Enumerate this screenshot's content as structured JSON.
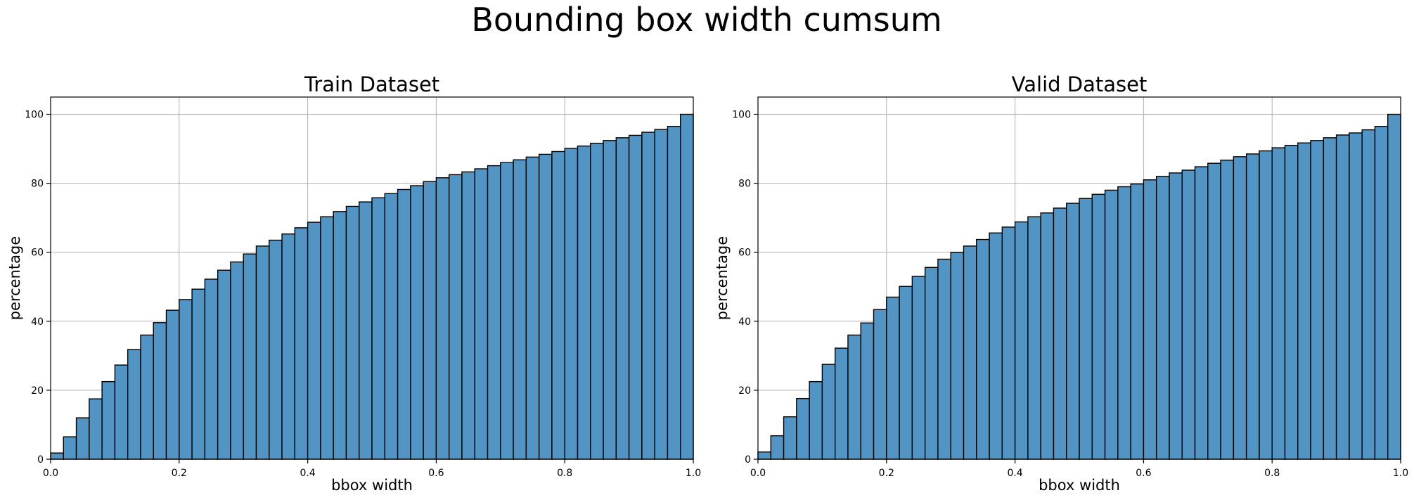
{
  "figure": {
    "suptitle": "Bounding box width cumsum",
    "bar_color": "#5294c4",
    "edge_color": "#000000",
    "grid_color": "#b0b0b0"
  },
  "chart_data": [
    {
      "type": "bar",
      "title": "Train Dataset",
      "xlabel": "bbox width",
      "ylabel": "percentage",
      "xlim": [
        0.0,
        1.0
      ],
      "ylim": [
        0,
        105
      ],
      "xticks": [
        "0.0",
        "0.2",
        "0.4",
        "0.6",
        "0.8",
        "1.0"
      ],
      "yticks": [
        "0",
        "20",
        "40",
        "60",
        "80",
        "100"
      ],
      "grid": true,
      "bin_width": 0.02,
      "x": [
        0.0,
        0.02,
        0.04,
        0.06,
        0.08,
        0.1,
        0.12,
        0.14,
        0.16,
        0.18,
        0.2,
        0.22,
        0.24,
        0.26,
        0.28,
        0.3,
        0.32,
        0.34,
        0.36,
        0.38,
        0.4,
        0.42,
        0.44,
        0.46,
        0.48,
        0.5,
        0.52,
        0.54,
        0.56,
        0.58,
        0.6,
        0.62,
        0.64,
        0.66,
        0.68,
        0.7,
        0.72,
        0.74,
        0.76,
        0.78,
        0.8,
        0.82,
        0.84,
        0.86,
        0.88,
        0.9,
        0.92,
        0.94,
        0.96,
        0.98
      ],
      "values": [
        1.8,
        6.5,
        12.0,
        17.5,
        22.5,
        27.3,
        31.8,
        36.0,
        39.6,
        43.2,
        46.3,
        49.3,
        52.2,
        54.8,
        57.2,
        59.5,
        61.8,
        63.5,
        65.3,
        67.1,
        68.7,
        70.3,
        71.8,
        73.3,
        74.6,
        75.8,
        77.0,
        78.2,
        79.3,
        80.5,
        81.6,
        82.5,
        83.3,
        84.2,
        85.1,
        86.0,
        86.8,
        87.6,
        88.4,
        89.2,
        90.1,
        90.8,
        91.6,
        92.4,
        93.2,
        93.9,
        94.8,
        95.6,
        96.5,
        100.0
      ]
    },
    {
      "type": "bar",
      "title": "Valid Dataset",
      "xlabel": "bbox width",
      "ylabel": "percentage",
      "xlim": [
        0.0,
        1.0
      ],
      "ylim": [
        0,
        105
      ],
      "xticks": [
        "0.0",
        "0.2",
        "0.4",
        "0.6",
        "0.8",
        "1.0"
      ],
      "yticks": [
        "0",
        "20",
        "40",
        "60",
        "80",
        "100"
      ],
      "grid": true,
      "bin_width": 0.02,
      "x": [
        0.0,
        0.02,
        0.04,
        0.06,
        0.08,
        0.1,
        0.12,
        0.14,
        0.16,
        0.18,
        0.2,
        0.22,
        0.24,
        0.26,
        0.28,
        0.3,
        0.32,
        0.34,
        0.36,
        0.38,
        0.4,
        0.42,
        0.44,
        0.46,
        0.48,
        0.5,
        0.52,
        0.54,
        0.56,
        0.58,
        0.6,
        0.62,
        0.64,
        0.66,
        0.68,
        0.7,
        0.72,
        0.74,
        0.76,
        0.78,
        0.8,
        0.82,
        0.84,
        0.86,
        0.88,
        0.9,
        0.92,
        0.94,
        0.96,
        0.98
      ],
      "values": [
        2.1,
        6.8,
        12.3,
        17.6,
        22.5,
        27.5,
        32.2,
        36.0,
        39.5,
        43.4,
        47.0,
        50.1,
        53.0,
        55.6,
        58.0,
        60.0,
        61.8,
        63.7,
        65.6,
        67.3,
        68.8,
        70.3,
        71.4,
        72.8,
        74.2,
        75.6,
        76.8,
        78.0,
        79.0,
        79.8,
        81.0,
        82.0,
        83.0,
        83.8,
        84.8,
        85.8,
        86.7,
        87.7,
        88.5,
        89.4,
        90.3,
        91.0,
        91.7,
        92.4,
        93.2,
        94.0,
        94.6,
        95.5,
        96.5,
        100.0
      ]
    }
  ]
}
